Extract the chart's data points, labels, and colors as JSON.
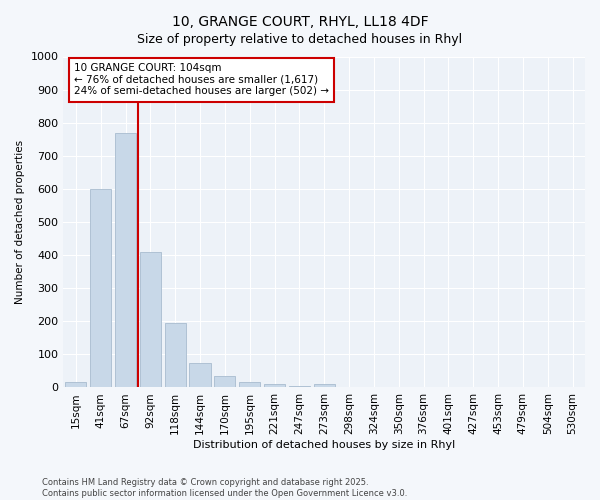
{
  "title": "10, GRANGE COURT, RHYL, LL18 4DF",
  "subtitle": "Size of property relative to detached houses in Rhyl",
  "xlabel": "Distribution of detached houses by size in Rhyl",
  "ylabel": "Number of detached properties",
  "categories": [
    "15sqm",
    "41sqm",
    "67sqm",
    "92sqm",
    "118sqm",
    "144sqm",
    "170sqm",
    "195sqm",
    "221sqm",
    "247sqm",
    "273sqm",
    "298sqm",
    "324sqm",
    "350sqm",
    "376sqm",
    "401sqm",
    "427sqm",
    "453sqm",
    "479sqm",
    "504sqm",
    "530sqm"
  ],
  "values": [
    15,
    600,
    770,
    410,
    195,
    75,
    35,
    15,
    10,
    5,
    10,
    0,
    0,
    0,
    0,
    0,
    0,
    0,
    0,
    0,
    0
  ],
  "bar_color": "#c8d8e8",
  "bar_edgecolor": "#a8bccf",
  "vline_index": 3,
  "vline_color": "#cc0000",
  "annotation_text": "10 GRANGE COURT: 104sqm\n← 76% of detached houses are smaller (1,617)\n24% of semi-detached houses are larger (502) →",
  "annotation_box_edgecolor": "#cc0000",
  "ylim": [
    0,
    1000
  ],
  "yticks": [
    0,
    100,
    200,
    300,
    400,
    500,
    600,
    700,
    800,
    900,
    1000
  ],
  "footer_line1": "Contains HM Land Registry data © Crown copyright and database right 2025.",
  "footer_line2": "Contains public sector information licensed under the Open Government Licence v3.0.",
  "bg_color": "#f4f7fb",
  "plot_bg_color": "#edf2f8"
}
